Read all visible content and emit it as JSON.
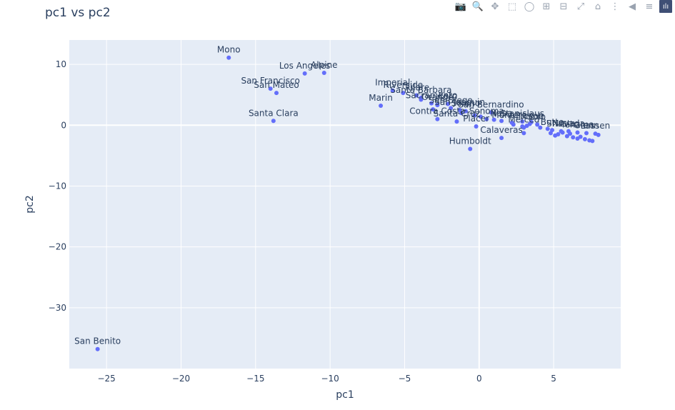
{
  "modebar": {
    "icons": [
      {
        "name": "camera-icon",
        "glyph": "📷"
      },
      {
        "name": "zoom-icon",
        "glyph": "🔍"
      },
      {
        "name": "pan-icon",
        "glyph": "✥"
      },
      {
        "name": "box-select-icon",
        "glyph": "⬚"
      },
      {
        "name": "lasso-select-icon",
        "glyph": "◯"
      },
      {
        "name": "zoom-in-icon",
        "glyph": "⊞"
      },
      {
        "name": "zoom-out-icon",
        "glyph": "⊟"
      },
      {
        "name": "autoscale-icon",
        "glyph": "⤢"
      },
      {
        "name": "home-icon",
        "glyph": "⌂"
      },
      {
        "name": "spike-lines-icon",
        "glyph": "⋮"
      },
      {
        "name": "hover-closest-icon",
        "glyph": "◀"
      },
      {
        "name": "hover-compare-icon",
        "glyph": "≡"
      },
      {
        "name": "plotly-logo-icon",
        "glyph": "ılı"
      }
    ]
  },
  "chart_data": {
    "type": "scatter",
    "title": "pc1 vs pc2",
    "xlabel": "pc1",
    "ylabel": "pc2",
    "xlim": [
      -27.5,
      9.5
    ],
    "ylim": [
      -40,
      14
    ],
    "xticks": [
      -25,
      -20,
      -15,
      -10,
      -5,
      0,
      5
    ],
    "yticks": [
      -30,
      -20,
      -10,
      0,
      10
    ],
    "tick_labels_x": [
      "−25",
      "−20",
      "−15",
      "−10",
      "−5",
      "0",
      "5"
    ],
    "tick_labels_y": [
      "−30",
      "−20",
      "−10",
      "0",
      "10"
    ],
    "grid": true,
    "marker_color": "#636efa",
    "plot_bg": "#e5ecf6",
    "points": [
      {
        "label": "Mono",
        "x": -16.8,
        "y": 11.1
      },
      {
        "label": "Los Angeles",
        "x": -11.7,
        "y": 8.5
      },
      {
        "label": "Alpine",
        "x": -10.4,
        "y": 8.6
      },
      {
        "label": "San Francisco",
        "x": -14.0,
        "y": 6.0
      },
      {
        "label": "San Mateo",
        "x": -13.6,
        "y": 5.3
      },
      {
        "label": "Santa Clara",
        "x": -13.8,
        "y": 0.7
      },
      {
        "label": "Marin",
        "x": -6.6,
        "y": 3.2
      },
      {
        "label": "Imperial",
        "x": -5.8,
        "y": 5.7
      },
      {
        "label": "Riverside",
        "x": -5.1,
        "y": 5.3
      },
      {
        "label": "Santa Barbara",
        "x": -3.9,
        "y": 4.5
      },
      {
        "label": "Sacramento",
        "x": -3.2,
        "y": 3.6
      },
      {
        "label": "Tulare",
        "x": -4.2,
        "y": 4.9
      },
      {
        "label": "Kern",
        "x": -2.1,
        "y": 3.5
      },
      {
        "label": "Orange",
        "x": -2.8,
        "y": 3.3
      },
      {
        "label": "San Bernardino",
        "x": 0.8,
        "y": 2.1
      },
      {
        "label": "San Diego",
        "x": -1.9,
        "y": 2.8
      },
      {
        "label": "San Joaquin",
        "x": -1.3,
        "y": 2.5
      },
      {
        "label": "Contra Costa",
        "x": -2.8,
        "y": 1.0
      },
      {
        "label": "Solano",
        "x": -0.9,
        "y": 2.3
      },
      {
        "label": "Santa Cruz",
        "x": -1.5,
        "y": 0.6
      },
      {
        "label": "Sonoma",
        "x": 0.5,
        "y": 1.0
      },
      {
        "label": "Napa",
        "x": 1.5,
        "y": 0.7
      },
      {
        "label": "Monterey",
        "x": 2.2,
        "y": 0.4
      },
      {
        "label": "Stanislaus",
        "x": 2.9,
        "y": 0.6
      },
      {
        "label": "Fresno",
        "x": 3.4,
        "y": 0.2
      },
      {
        "label": "Yolo",
        "x": 3.9,
        "y": 0.1
      },
      {
        "label": "Placer",
        "x": -0.2,
        "y": -0.2
      },
      {
        "label": "Calaveras",
        "x": 1.5,
        "y": -2.1
      },
      {
        "label": "Humboldt",
        "x": -0.6,
        "y": -3.9
      },
      {
        "label": "Merced",
        "x": 3.0,
        "y": -0.4
      },
      {
        "label": "Butte",
        "x": 4.9,
        "y": -0.8
      },
      {
        "label": "Shasta",
        "x": 5.5,
        "y": -1.0
      },
      {
        "label": "Nevada",
        "x": 6.0,
        "y": -1.0
      },
      {
        "label": "Tehama",
        "x": 6.6,
        "y": -1.2
      },
      {
        "label": "Glenn",
        "x": 7.2,
        "y": -1.3
      },
      {
        "label": "Lassen",
        "x": 7.8,
        "y": -1.4
      },
      {
        "label": "San Benito",
        "x": -25.6,
        "y": -36.8
      }
    ],
    "unlabeled_points": [
      [
        -3.9,
        4.2
      ],
      [
        -3.1,
        2.6
      ],
      [
        -1.2,
        2.0
      ],
      [
        -0.3,
        1.6
      ],
      [
        0.1,
        1.4
      ],
      [
        1.0,
        0.9
      ],
      [
        2.3,
        0.1
      ],
      [
        2.9,
        -0.2
      ],
      [
        3.2,
        -0.1
      ],
      [
        3.5,
        0.5
      ],
      [
        4.1,
        -0.4
      ],
      [
        4.6,
        -0.6
      ],
      [
        4.8,
        -1.3
      ],
      [
        5.1,
        -1.7
      ],
      [
        5.3,
        -1.5
      ],
      [
        5.6,
        -1.2
      ],
      [
        5.9,
        -1.8
      ],
      [
        6.1,
        -1.4
      ],
      [
        6.3,
        -2.0
      ],
      [
        6.6,
        -2.2
      ],
      [
        6.8,
        -1.9
      ],
      [
        7.1,
        -2.3
      ],
      [
        7.4,
        -2.5
      ],
      [
        7.6,
        -2.6
      ],
      [
        8.0,
        -1.6
      ],
      [
        3.0,
        -1.3
      ]
    ]
  }
}
